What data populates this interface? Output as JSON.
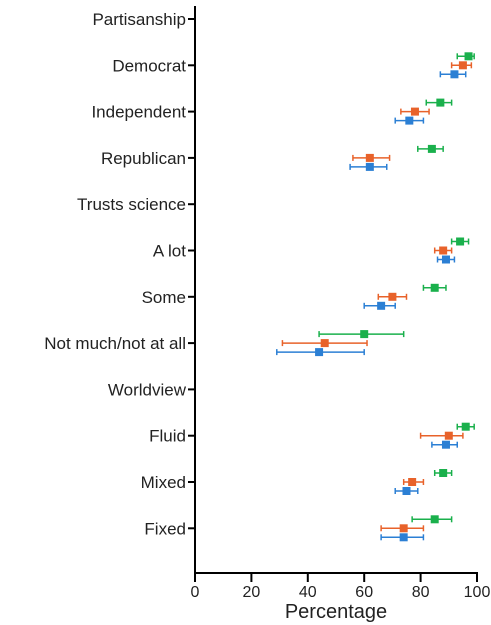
{
  "chart_data": {
    "type": "scatter",
    "title": "",
    "xlabel": "Percentage",
    "ylabel": "",
    "xlim": [
      0,
      100
    ],
    "xticks": [
      "0",
      "20",
      "40",
      "60",
      "80",
      "100"
    ],
    "grid": false,
    "colors": {
      "green": "#1ab04c",
      "orange": "#e8622a",
      "blue": "#2b7fd4"
    },
    "categories": [
      {
        "label": "Partisanship",
        "header": true,
        "points": []
      },
      {
        "label": "Democrat",
        "header": false,
        "points": [
          {
            "color": "green",
            "value": 97,
            "low": 93,
            "high": 99
          },
          {
            "color": "orange",
            "value": 95,
            "low": 91,
            "high": 98
          },
          {
            "color": "blue",
            "value": 92,
            "low": 87,
            "high": 96
          }
        ]
      },
      {
        "label": "Independent",
        "header": false,
        "points": [
          {
            "color": "green",
            "value": 87,
            "low": 82,
            "high": 91
          },
          {
            "color": "orange",
            "value": 78,
            "low": 73,
            "high": 83
          },
          {
            "color": "blue",
            "value": 76,
            "low": 71,
            "high": 81
          }
        ]
      },
      {
        "label": "Republican",
        "header": false,
        "points": [
          {
            "color": "green",
            "value": 84,
            "low": 79,
            "high": 88
          },
          {
            "color": "orange",
            "value": 62,
            "low": 56,
            "high": 69
          },
          {
            "color": "blue",
            "value": 62,
            "low": 55,
            "high": 68
          }
        ]
      },
      {
        "label": "Trusts science",
        "header": true,
        "points": []
      },
      {
        "label": "A lot",
        "header": false,
        "points": [
          {
            "color": "green",
            "value": 94,
            "low": 91,
            "high": 97
          },
          {
            "color": "orange",
            "value": 88,
            "low": 85,
            "high": 91
          },
          {
            "color": "blue",
            "value": 89,
            "low": 86,
            "high": 92
          }
        ]
      },
      {
        "label": "Some",
        "header": false,
        "points": [
          {
            "color": "green",
            "value": 85,
            "low": 81,
            "high": 89
          },
          {
            "color": "orange",
            "value": 70,
            "low": 65,
            "high": 75
          },
          {
            "color": "blue",
            "value": 66,
            "low": 60,
            "high": 71
          }
        ]
      },
      {
        "label": "Not much/not at all",
        "header": false,
        "points": [
          {
            "color": "green",
            "value": 60,
            "low": 44,
            "high": 74
          },
          {
            "color": "orange",
            "value": 46,
            "low": 31,
            "high": 61
          },
          {
            "color": "blue",
            "value": 44,
            "low": 29,
            "high": 60
          }
        ]
      },
      {
        "label": "Worldview",
        "header": true,
        "points": []
      },
      {
        "label": "Fluid",
        "header": false,
        "points": [
          {
            "color": "green",
            "value": 96,
            "low": 93,
            "high": 99
          },
          {
            "color": "orange",
            "value": 90,
            "low": 80,
            "high": 95
          },
          {
            "color": "blue",
            "value": 89,
            "low": 84,
            "high": 93
          }
        ]
      },
      {
        "label": "Mixed",
        "header": false,
        "points": [
          {
            "color": "green",
            "value": 88,
            "low": 85,
            "high": 91
          },
          {
            "color": "orange",
            "value": 77,
            "low": 74,
            "high": 81
          },
          {
            "color": "blue",
            "value": 75,
            "low": 71,
            "high": 79
          }
        ]
      },
      {
        "label": "Fixed",
        "header": false,
        "points": [
          {
            "color": "green",
            "value": 85,
            "low": 77,
            "high": 91
          },
          {
            "color": "orange",
            "value": 74,
            "low": 66,
            "high": 81
          },
          {
            "color": "blue",
            "value": 74,
            "low": 66,
            "high": 81
          }
        ]
      }
    ]
  }
}
